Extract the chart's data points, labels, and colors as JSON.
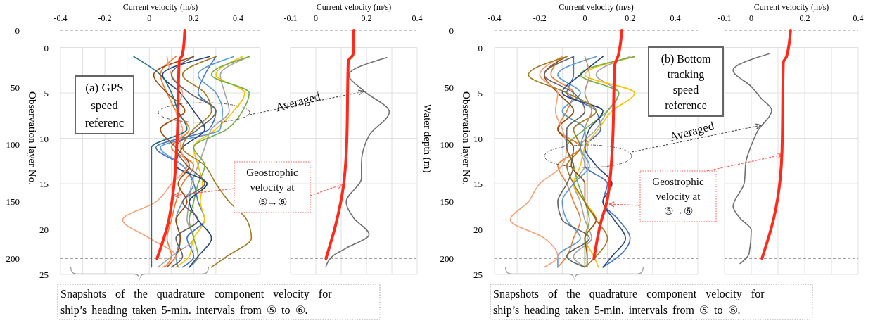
{
  "chart_data": [
    {
      "type": "line",
      "xlabel": "Current velocity (m/s)",
      "ylabel": "Observation layer No.",
      "xlim": [
        -0.4,
        0.5
      ],
      "xticks": [
        -0.4,
        {
          "value": -0.3,
          "label": null
        },
        -0.2,
        {
          "value": -0.1,
          "label": null
        },
        0,
        {
          "value": 0.1,
          "label": null
        },
        0.2,
        {
          "value": 0.3,
          "label": null
        },
        0.4,
        {
          "value": 0.5,
          "label": null
        }
      ],
      "ylim": [
        25,
        -1.9
      ],
      "yticks": [
        0,
        5,
        10,
        15,
        20,
        25
      ],
      "y2lim": [
        214,
        0
      ],
      "y2ticks": [
        0,
        50,
        100,
        150,
        200
      ],
      "grid": true,
      "ref_lines": [
        {
          "axis": "y2",
          "value": 0,
          "color": "#8c8c8c",
          "line_style": "dashed"
        },
        {
          "axis": "y2",
          "value": 200,
          "color": "#8c8c8c",
          "line_style": "dashed"
        }
      ],
      "annotations": [
        "(a) GPS\nspeed\nreferenc",
        "Averaged",
        "Geostrophic\nvelocity at\n⑤→⑥",
        "Snapshots of the quadrature component velocity for\nship’s heading taken 5-min. intervals from ⑤ to ⑥."
      ],
      "series": [
        {
          "color": "#4472c4",
          "x": [
            0.3,
            0.25,
            0.22,
            0.3,
            0.27,
            0.03,
            0.15,
            0.2,
            0.22,
            0.25,
            0.17,
            0.2,
            0.15
          ],
          "values": [
            1,
            3,
            5,
            7,
            9,
            11,
            13,
            15,
            17,
            19,
            21,
            23,
            24.2
          ]
        },
        {
          "color": "#ed7d31",
          "x": [
            0.12,
            0.05,
            0.08,
            0.12,
            0.18,
            0.1,
            0.2,
            0.15,
            0.12,
            0.1,
            0.08,
            0.1,
            0.07
          ],
          "values": [
            1,
            3,
            5,
            7,
            9,
            11,
            13,
            15,
            17,
            19,
            21,
            23,
            24.2
          ]
        },
        {
          "color": "#a5a5a5",
          "x": [
            0.45,
            0.32,
            0.34,
            0.36,
            0.28,
            0.25,
            0.22,
            0.19,
            0.18,
            0.17,
            0.2,
            0.1,
            0.04
          ],
          "values": [
            1,
            3,
            5,
            7,
            9,
            11,
            13,
            15,
            17,
            19,
            21,
            23,
            24.2
          ]
        },
        {
          "color": "#ffc000",
          "x": [
            0.42,
            0.3,
            0.43,
            0.38,
            0.3,
            0.2,
            0.22,
            0.24,
            0.23,
            0.25,
            0.2,
            0.18,
            0.12
          ],
          "values": [
            1,
            3,
            5,
            7,
            9,
            11,
            13,
            15,
            17,
            19,
            21,
            23,
            24.2
          ]
        },
        {
          "color": "#5b9bd5",
          "x": [
            0.38,
            0.22,
            0.3,
            0.33,
            0.32,
            0.05,
            0.15,
            0.2,
            0.15,
            0.12,
            0.14,
            0.12,
            0.13
          ],
          "values": [
            1,
            3,
            5,
            7,
            9,
            11,
            13,
            15,
            17,
            19,
            21,
            23,
            24.2
          ]
        },
        {
          "color": "#70ad47",
          "x": [
            0.45,
            0.28,
            0.45,
            0.42,
            0.35,
            0.2,
            0.25,
            0.22,
            0.2,
            0.18,
            0.2,
            0.22,
            0.18
          ],
          "values": [
            1,
            3,
            5,
            7,
            9,
            11,
            13,
            15,
            17,
            19,
            21,
            23,
            24.2
          ]
        },
        {
          "color": "#264478",
          "x": [
            0.27,
            0.06,
            0.14,
            0.2,
            0.25,
            0.15,
            0.12,
            0.26,
            0.18,
            0.22,
            0.28,
            0.22,
            0.18
          ],
          "values": [
            1,
            3,
            5,
            7,
            9,
            11,
            13,
            15,
            17,
            19,
            21,
            23,
            24.2
          ]
        },
        {
          "color": "#9e480e",
          "x": [
            0.2,
            0.02,
            0.08,
            0.16,
            0.05,
            0.12,
            0.18,
            0.13,
            0.17,
            0.12,
            0.14,
            0.12,
            0.08
          ],
          "values": [
            1,
            3,
            5,
            7,
            9,
            11,
            13,
            15,
            17,
            19,
            21,
            23,
            24.2
          ]
        },
        {
          "color": "#f4a27a",
          "x": [
            0.08,
            0.1,
            0.15,
            0.12,
            0.15,
            0.14,
            0.17,
            0.1,
            0.03,
            -0.12,
            0.0,
            0.12,
            0.06
          ],
          "values": [
            1,
            3,
            5,
            7,
            9,
            11,
            13,
            15,
            17,
            19,
            21,
            23,
            24.2
          ]
        },
        {
          "color": "#a07a20",
          "x": [
            0.3,
            0.15,
            0.25,
            0.28,
            0.2,
            0.15,
            0.25,
            0.3,
            0.36,
            0.44,
            0.46,
            0.35,
            0.28
          ],
          "values": [
            1,
            3,
            5,
            7,
            9,
            11,
            13,
            15,
            17,
            19,
            21,
            23,
            24.2
          ]
        },
        {
          "color": "#1f6f7f",
          "x": [
            -0.07,
            0.05,
            0.1,
            0.13,
            0.17,
            0.01,
            0.01,
            0.01,
            0.01,
            0.01,
            0.01,
            0.01,
            0.01
          ],
          "values": [
            1,
            3,
            5,
            7,
            9,
            11,
            13,
            15,
            17,
            19,
            21,
            23,
            24.2
          ]
        },
        {
          "color": "#636363",
          "x": [
            0.2,
            0.1,
            0.18,
            0.3,
            0.22,
            0.12,
            0.17,
            0.25,
            0.15,
            0.22,
            0.12,
            0.15,
            0.1
          ],
          "values": [
            1,
            3,
            5,
            7,
            9,
            11,
            13,
            15,
            17,
            19,
            21,
            23,
            24.2
          ]
        },
        {
          "color": "#ff2a1a",
          "axis": "y2",
          "x": [
            0.16,
            0.15,
            0.135,
            0.125,
            0.11,
            0.085,
            0.035
          ],
          "values": [
            0,
            21,
            27,
            97,
            138,
            169,
            200
          ]
        }
      ]
    },
    {
      "type": "line",
      "xlabel": "Current velocity (m/s)",
      "y2label": "Water depth (m)",
      "xlim": [
        -0.1,
        0.4
      ],
      "xticks": [
        -0.1,
        0,
        {
          "value": 0.1,
          "label": null
        },
        0.2,
        {
          "value": 0.3,
          "label": null
        },
        0.4
      ],
      "ylim": [
        25,
        -1.9
      ],
      "yticks": [
        0,
        5,
        10,
        15,
        20,
        25
      ],
      "y2lim": [
        214,
        0
      ],
      "grid": true,
      "tick_labels": "x",
      "ref_lines": [
        {
          "axis": "y2",
          "value": 0,
          "color": "#8c8c8c",
          "line_style": "dashed"
        },
        {
          "axis": "y2",
          "value": 200,
          "color": "#8c8c8c",
          "line_style": "dashed"
        }
      ],
      "series": [
        {
          "color": "#707070",
          "x": [
            0.28,
            0.13,
            0.19,
            0.29,
            0.21,
            0.18,
            0.18,
            0.12,
            0.15,
            0.21,
            0.12,
            0.07,
            0.04
          ],
          "values": [
            1.1,
            3.0,
            4.8,
            7.1,
            9.7,
            12.8,
            14.4,
            17,
            18.8,
            20.6,
            22.1,
            22.9,
            24.1
          ]
        },
        {
          "color": "#ff2a1a",
          "axis": "y2",
          "x": [
            0.15,
            0.147,
            0.128,
            0.122,
            0.108,
            0.08,
            0.04
          ],
          "values": [
            0,
            21,
            27,
            98,
            138,
            169,
            200
          ]
        }
      ]
    },
    {
      "type": "line",
      "xlabel": "Current velocity (m/s)",
      "ylabel": "Observation layer No.",
      "xlim": [
        -0.4,
        0.5
      ],
      "xticks": [
        -0.4,
        {
          "value": -0.3,
          "label": null
        },
        -0.2,
        {
          "value": -0.1,
          "label": null
        },
        0,
        {
          "value": 0.1,
          "label": null
        },
        0.2,
        {
          "value": 0.3,
          "label": null
        },
        0.4,
        {
          "value": 0.5,
          "label": null
        }
      ],
      "ylim": [
        25,
        -1.9
      ],
      "yticks": [
        0,
        5,
        10,
        15,
        20,
        25
      ],
      "y2lim": [
        214,
        0
      ],
      "y2ticks": [
        0,
        50,
        100,
        150,
        200
      ],
      "grid": true,
      "ref_lines": [
        {
          "axis": "y2",
          "value": 0,
          "color": "#8c8c8c",
          "line_style": "dashed"
        },
        {
          "axis": "y2",
          "value": 200,
          "color": "#8c8c8c",
          "line_style": "dashed"
        }
      ],
      "annotations": [
        "(b) Bottom\ntracking\nspeed\nreference",
        "Averaged",
        "Geostrophic\nvelocity at\n⑤→⑥",
        "Snapshots of the quadrature component velocity for\nship’s heading taken 5-min. intervals from ⑤ to ⑥."
      ],
      "series": [
        {
          "color": "#4472c4",
          "x": [
            -0.05,
            -0.05,
            -0.08,
            0.05,
            0.07,
            0.0,
            0.0,
            0.1,
            0.08,
            0.15,
            0.2,
            0.15,
            0.08
          ],
          "values": [
            1,
            3,
            5,
            7,
            9,
            11,
            13,
            15,
            17,
            19,
            21,
            23,
            24.2
          ]
        },
        {
          "color": "#ed7d31",
          "x": [
            -0.1,
            -0.15,
            -0.05,
            -0.08,
            -0.12,
            -0.02,
            -0.12,
            -0.08,
            -0.05,
            -0.02,
            -0.05,
            -0.08,
            -0.12
          ],
          "values": [
            1,
            3,
            5,
            7,
            9,
            11,
            13,
            15,
            17,
            19,
            21,
            23,
            24.2
          ]
        },
        {
          "color": "#a5a5a5",
          "x": [
            0.2,
            0.05,
            0.15,
            0.1,
            0.05,
            -0.02,
            0.0,
            -0.05,
            -0.02,
            0.0,
            0.03,
            -0.05,
            0.0
          ],
          "values": [
            1,
            3,
            5,
            7,
            9,
            11,
            13,
            15,
            17,
            19,
            21,
            23,
            24.2
          ]
        },
        {
          "color": "#ffc000",
          "x": [
            0.22,
            0.0,
            0.22,
            0.12,
            0.06,
            0.0,
            -0.02,
            -0.05,
            0.0,
            0.05,
            0.0,
            0.04,
            0.06
          ],
          "values": [
            1,
            3,
            5,
            7,
            9,
            11,
            13,
            15,
            17,
            19,
            21,
            23,
            24.2
          ]
        },
        {
          "color": "#5b9bd5",
          "x": [
            0.05,
            -0.12,
            -0.02,
            -0.1,
            0.0,
            -0.02,
            0.02,
            -0.05,
            -0.1,
            -0.08,
            -0.02,
            -0.12,
            -0.12
          ],
          "values": [
            1,
            3,
            5,
            7,
            9,
            11,
            13,
            15,
            17,
            19,
            21,
            23,
            24.2
          ]
        },
        {
          "color": "#70ad47",
          "x": [
            0.22,
            -0.02,
            0.15,
            0.1,
            0.0,
            -0.08,
            -0.05,
            -0.03,
            0.0,
            0.02,
            0.0,
            0.0,
            0.0
          ],
          "values": [
            1,
            3,
            5,
            7,
            9,
            11,
            13,
            15,
            17,
            19,
            21,
            23,
            24.2
          ]
        },
        {
          "color": "#264478",
          "x": [
            0.08,
            -0.02,
            -0.1,
            0.08,
            0.02,
            0.0,
            0.05,
            0.12,
            0.08,
            0.13,
            0.18,
            0.12,
            0.08
          ],
          "values": [
            1,
            3,
            5,
            7,
            9,
            11,
            13,
            15,
            17,
            19,
            21,
            23,
            24.2
          ]
        },
        {
          "color": "#9e480e",
          "x": [
            -0.08,
            -0.18,
            -0.12,
            -0.05,
            -0.12,
            -0.05,
            -0.06,
            0.0,
            0.0,
            0.05,
            0.0,
            0.01,
            0.01
          ],
          "values": [
            1,
            3,
            5,
            7,
            9,
            11,
            13,
            15,
            17,
            19,
            21,
            23,
            24.2
          ]
        },
        {
          "color": "#f4a27a",
          "x": [
            -0.1,
            -0.2,
            -0.12,
            -0.13,
            -0.1,
            -0.08,
            -0.1,
            -0.2,
            -0.25,
            -0.33,
            -0.18,
            -0.12,
            -0.18
          ],
          "values": [
            1,
            3,
            5,
            7,
            9,
            11,
            13,
            15,
            17,
            19,
            21,
            23,
            24.2
          ]
        },
        {
          "color": "#a07a20",
          "x": [
            -0.08,
            -0.25,
            -0.08,
            0.05,
            -0.05,
            -0.02,
            -0.08,
            -0.05,
            0.0,
            0.05,
            0.1,
            0.05,
            0.0
          ],
          "values": [
            1,
            3,
            5,
            7,
            9,
            11,
            13,
            15,
            17,
            19,
            21,
            23,
            24.2
          ]
        },
        {
          "color": "#636363",
          "x": [
            -0.05,
            -0.18,
            -0.05,
            0.0,
            -0.08,
            -0.08,
            -0.05,
            -0.08,
            -0.12,
            -0.1,
            0.02,
            -0.08,
            0.0
          ],
          "values": [
            1,
            3,
            5,
            7,
            9,
            11,
            13,
            15,
            17,
            19,
            21,
            23,
            24.2
          ]
        },
        {
          "color": "#c08a6a",
          "x": [
            0.0,
            0.02,
            0.0,
            0.03,
            0.0,
            0.01,
            0.01,
            0.01,
            0.01,
            0.01,
            0.01,
            0.01,
            0.01
          ],
          "values": [
            1,
            3,
            5,
            7,
            9,
            11,
            13,
            15,
            17,
            19,
            21,
            23,
            24.2
          ]
        },
        {
          "color": "#ff2a1a",
          "axis": "y2",
          "x": [
            0.163,
            0.148,
            0.132,
            0.123,
            0.1,
            0.07,
            0.04
          ],
          "values": [
            0,
            22,
            31,
            97,
            148,
            169,
            200
          ]
        }
      ]
    },
    {
      "type": "line",
      "xlabel": "Current velocity (m/s)",
      "xlim": [
        -0.1,
        0.4
      ],
      "xticks": [
        -0.1,
        0,
        {
          "value": 0.1,
          "label": null
        },
        0.2,
        {
          "value": 0.3,
          "label": null
        },
        0.4
      ],
      "ylim": [
        25,
        -1.9
      ],
      "yticks": [
        0,
        5,
        10,
        15,
        20,
        25
      ],
      "y2lim": [
        214,
        0
      ],
      "grid": true,
      "tick_labels": "x",
      "ref_lines": [
        {
          "axis": "y2",
          "value": 0,
          "color": "#8c8c8c",
          "line_style": "dashed"
        },
        {
          "axis": "y2",
          "value": 200,
          "color": "#8c8c8c",
          "line_style": "dashed"
        }
      ],
      "series": [
        {
          "color": "#707070",
          "x": [
            0.066,
            -0.068,
            0.0,
            0.037,
            0.076,
            0.024,
            0.0,
            -0.02,
            -0.026,
            -0.068,
            -0.042,
            0.0,
            -0.008,
            -0.042
          ],
          "values": [
            0.7,
            2.5,
            4.3,
            5.6,
            6.9,
            9.2,
            10.8,
            12.6,
            14.9,
            17.5,
            18.8,
            20.1,
            22.7,
            23.8
          ]
        },
        {
          "color": "#ff2a1a",
          "axis": "y2",
          "x": [
            0.147,
            0.132,
            0.12,
            0.115,
            0.085,
            0.04
          ],
          "values": [
            0,
            23,
            28,
            106,
            164,
            200
          ]
        }
      ]
    }
  ]
}
